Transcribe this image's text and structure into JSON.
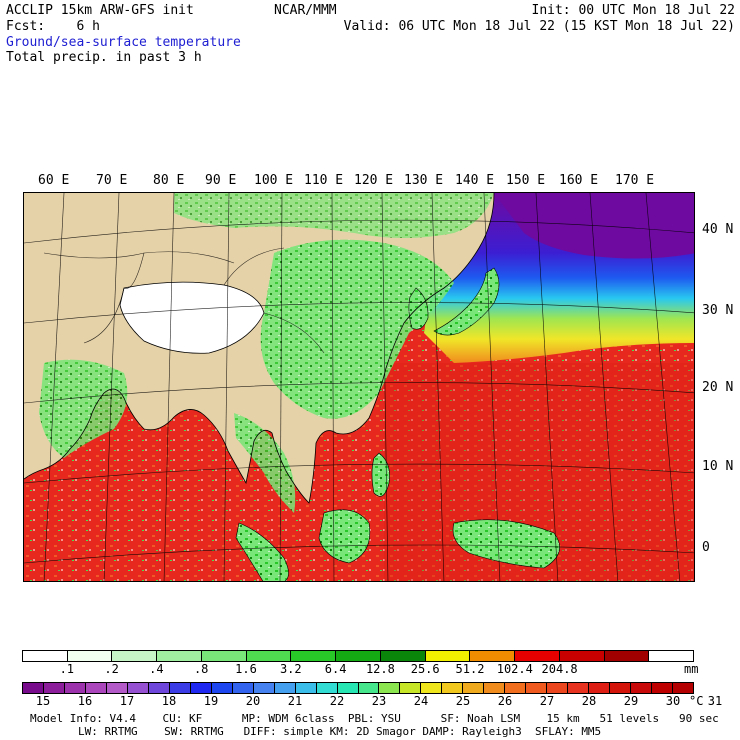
{
  "header": {
    "line1_left": "ACCLIP 15km ARW-GFS init",
    "line1_mid": "NCAR/MMM",
    "line1_right": "Init: 00 UTC Mon 18 Jul 22",
    "line2_left": "Fcst:    6 h",
    "line2_right": "Valid: 06 UTC Mon 18 Jul 22 (15 KST Mon 18 Jul 22)",
    "field1": "Ground/sea-surface temperature",
    "field2": "Total precip. in past 3 h"
  },
  "map": {
    "lon_labels": [
      "60 E",
      "70 E",
      "80 E",
      "90 E",
      "100 E",
      "110 E",
      "120 E",
      "130 E",
      "140 E",
      "150 E",
      "160 E",
      "170 E"
    ],
    "lat_labels": [
      "40 N",
      "30 N",
      "20 N",
      "10 N",
      "0"
    ],
    "colors": {
      "ocean_warm": "#e8281e",
      "ocean_deep": "#cc1410",
      "land": "#e6d2a8",
      "snow": "#ffffff",
      "cold_purple": "#6e0aa0",
      "cold_blue": "#1e3cf0",
      "cyan": "#28c8f0",
      "yellow": "#f0e628",
      "green_light": "#a0ee8c",
      "green": "#28c828",
      "green_dark": "#0a8c0a"
    }
  },
  "precip_legend": {
    "colors": [
      "#ffffff",
      "#f0fff0",
      "#c8f5c8",
      "#a0eea0",
      "#78e678",
      "#50dc50",
      "#28c828",
      "#14aa14",
      "#0a870a",
      "#f0f000",
      "#f08c00",
      "#e60000",
      "#c80000",
      "#a00000",
      "#ffffff"
    ],
    "ticks": [
      ".1",
      ".2",
      ".4",
      ".8",
      "1.6",
      "3.2",
      "6.4",
      "12.8",
      "25.6",
      "51.2",
      "102.4",
      "204.8"
    ],
    "unit": "mm"
  },
  "temp_legend": {
    "colors": [
      "#780a8c",
      "#8c1e9c",
      "#9c32ac",
      "#ac46bc",
      "#b45ac8",
      "#9650d2",
      "#6e46dc",
      "#3c3ce6",
      "#1e28f0",
      "#1e46f0",
      "#3264f0",
      "#4682f0",
      "#46a0f0",
      "#3cbeea",
      "#32dcd2",
      "#28e6b4",
      "#46e68c",
      "#8ce650",
      "#c8e628",
      "#f0e61e",
      "#f0c81e",
      "#f0aa1e",
      "#f08c1e",
      "#f06e1e",
      "#f05a1e",
      "#eb461e",
      "#e6321e",
      "#dc1e14",
      "#d2140a",
      "#c80a0a",
      "#be0000",
      "#b40000"
    ],
    "ticks": [
      "15",
      "16",
      "17",
      "18",
      "19",
      "20",
      "21",
      "22",
      "23",
      "24",
      "25",
      "26",
      "27",
      "28",
      "29",
      "30",
      "31"
    ],
    "unit": "°C"
  },
  "footer": {
    "line1": "Model Info: V4.4    CU: KF      MP: WDM 6class  PBL: YSU      SF: Noah LSM    15 km   51 levels   90 sec",
    "line2": "LW: RRTMG    SW: RRTMG   DIFF: simple KM: 2D Smagor DAMP: Rayleigh3  SFLAY: MM5"
  }
}
